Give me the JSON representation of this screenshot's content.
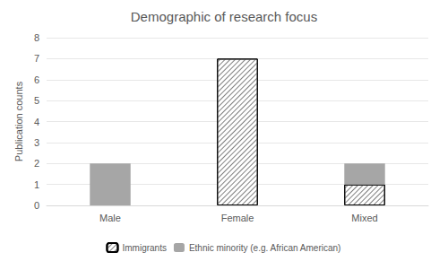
{
  "chart_data": {
    "type": "bar",
    "title": "Demographic of research focus",
    "y_label": "Publication counts",
    "categories": [
      "Male",
      "Female",
      "Mixed"
    ],
    "series": [
      {
        "name": "Immigrants",
        "color": "#ffffff",
        "values": [
          0,
          7,
          1
        ]
      },
      {
        "name": "Ethnic minority (e.g. African American)",
        "color": "#a6a6a6",
        "values": [
          2,
          0,
          1
        ]
      }
    ],
    "stacked": true,
    "ylim": [
      0,
      8
    ],
    "yticks": [
      0,
      1,
      2,
      3,
      4,
      5,
      6,
      7,
      8
    ],
    "grid": true,
    "legend": "bottom"
  }
}
